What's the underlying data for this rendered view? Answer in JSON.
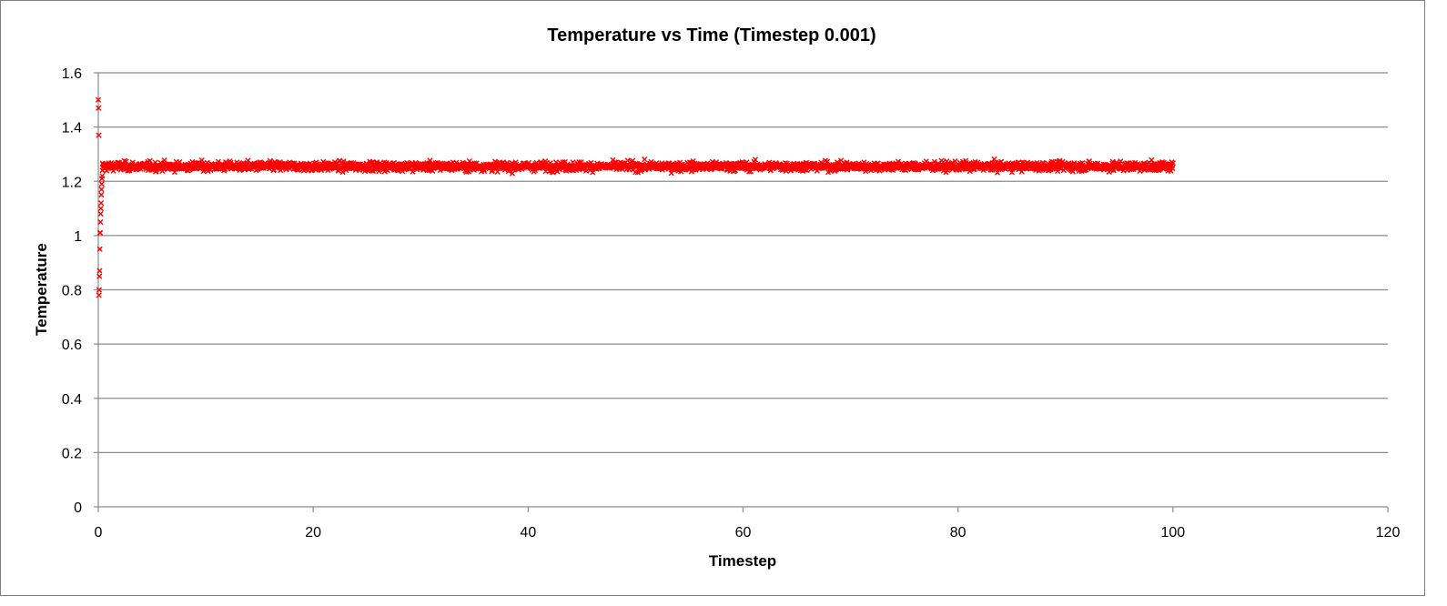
{
  "chart_data": {
    "type": "scatter",
    "title": "Temperature vs Time (Timestep 0.001)",
    "xlabel": "Timestep",
    "ylabel": "Temperature",
    "xlim": [
      0,
      120
    ],
    "ylim": [
      0,
      1.6
    ],
    "xticks": [
      "0",
      "20",
      "40",
      "60",
      "80",
      "100",
      "120"
    ],
    "yticks": [
      "0",
      "0.2",
      "0.4",
      "0.6",
      "0.8",
      "1",
      "1.2",
      "1.4",
      "1.6"
    ],
    "grid": "horizontal",
    "legend": "none",
    "marker": "x",
    "series_color": "#ff0000",
    "series": [
      {
        "x_range": [
          0,
          100
        ],
        "initial_points": [
          [
            0.0,
            1.5
          ],
          [
            0.02,
            1.47
          ],
          [
            0.04,
            1.37
          ],
          [
            0.06,
            0.78
          ],
          [
            0.08,
            0.8
          ],
          [
            0.1,
            0.85
          ],
          [
            0.12,
            0.87
          ],
          [
            0.14,
            0.95
          ],
          [
            0.16,
            1.01
          ],
          [
            0.18,
            1.01
          ],
          [
            0.2,
            1.05
          ],
          [
            0.22,
            1.08
          ],
          [
            0.24,
            1.1
          ],
          [
            0.26,
            1.12
          ],
          [
            0.28,
            1.15
          ],
          [
            0.3,
            1.17
          ],
          [
            0.32,
            1.19
          ],
          [
            0.34,
            1.21
          ],
          [
            0.36,
            1.22
          ],
          [
            0.38,
            1.24
          ]
        ],
        "steady_mean": 1.255,
        "steady_min": 1.19,
        "steady_max": 1.33,
        "steady_from": 0.4,
        "steady_to": 100
      }
    ]
  }
}
